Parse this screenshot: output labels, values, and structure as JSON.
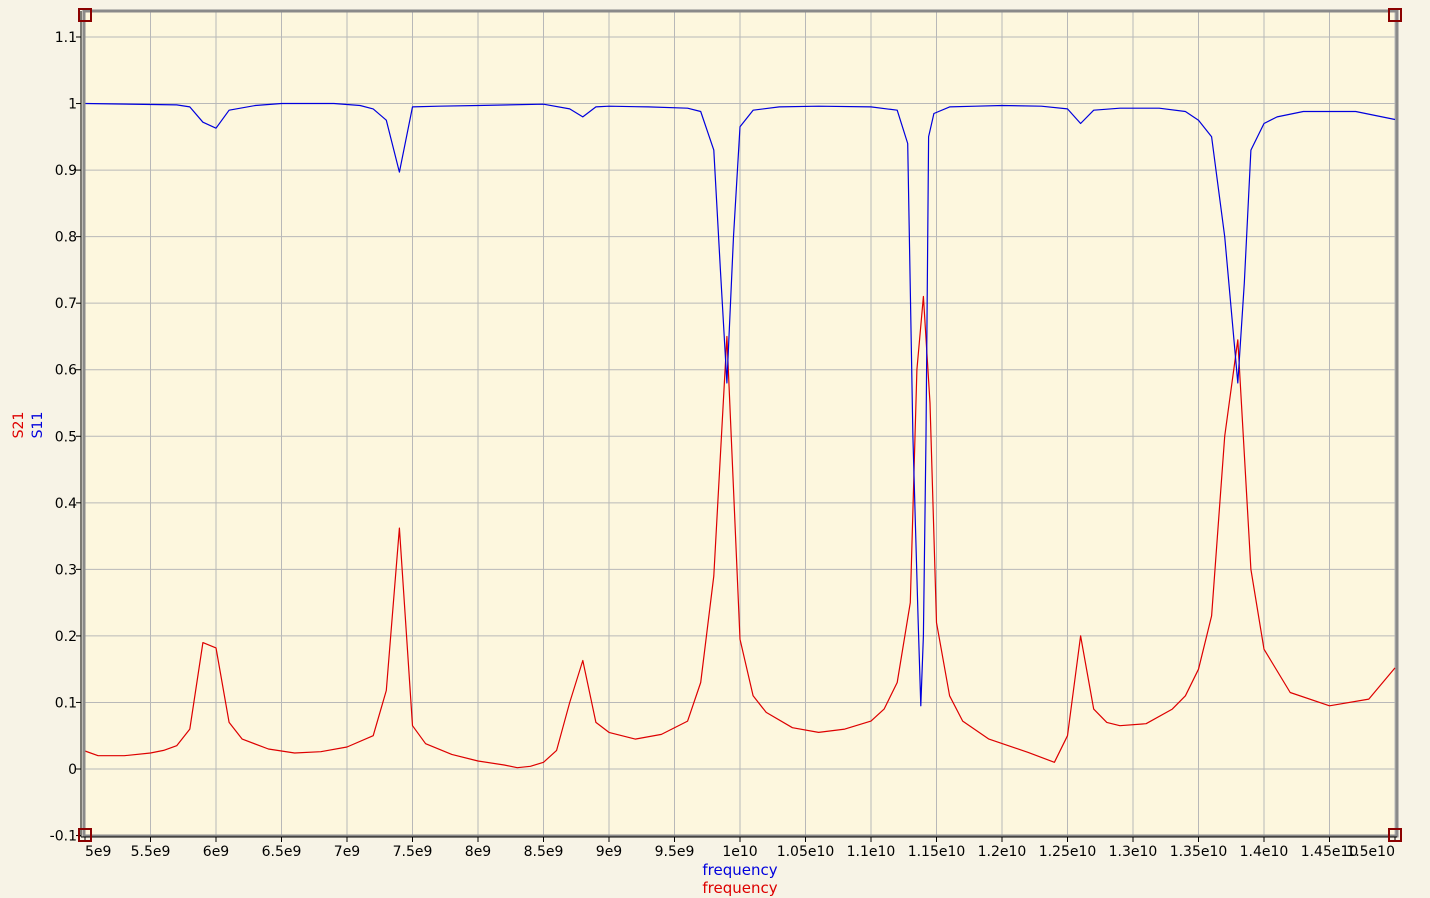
{
  "chart_data": {
    "type": "line",
    "xlabel": [
      "frequency",
      "frequency"
    ],
    "ylabel": [
      "S21",
      "S11"
    ],
    "xlim": [
      5000000000,
      15000000000
    ],
    "ylim": [
      -0.1,
      1.13
    ],
    "x_ticks": [
      {
        "value": 5000000000,
        "label": "5e9"
      },
      {
        "value": 5500000000,
        "label": "5.5e9"
      },
      {
        "value": 6000000000,
        "label": "6e9"
      },
      {
        "value": 6500000000,
        "label": "6.5e9"
      },
      {
        "value": 7000000000,
        "label": "7e9"
      },
      {
        "value": 7500000000,
        "label": "7.5e9"
      },
      {
        "value": 8000000000,
        "label": "8e9"
      },
      {
        "value": 8500000000,
        "label": "8.5e9"
      },
      {
        "value": 9000000000,
        "label": "9e9"
      },
      {
        "value": 9500000000,
        "label": "9.5e9"
      },
      {
        "value": 10000000000,
        "label": "1e10"
      },
      {
        "value": 10500000000,
        "label": "1.05e10"
      },
      {
        "value": 11000000000,
        "label": "1.1e10"
      },
      {
        "value": 11500000000,
        "label": "1.15e10"
      },
      {
        "value": 12000000000,
        "label": "1.2e10"
      },
      {
        "value": 12500000000,
        "label": "1.25e10"
      },
      {
        "value": 13000000000,
        "label": "1.3e10"
      },
      {
        "value": 13500000000,
        "label": "1.35e10"
      },
      {
        "value": 14000000000,
        "label": "1.4e10"
      },
      {
        "value": 14500000000,
        "label": "1.45e10"
      },
      {
        "value": 15000000000,
        "label": "1.5e10"
      }
    ],
    "y_ticks": [
      {
        "value": -0.1,
        "label": "-0.1"
      },
      {
        "value": 0,
        "label": "0"
      },
      {
        "value": 0.1,
        "label": "0.1"
      },
      {
        "value": 0.2,
        "label": "0.2"
      },
      {
        "value": 0.3,
        "label": "0.3"
      },
      {
        "value": 0.4,
        "label": "0.4"
      },
      {
        "value": 0.5,
        "label": "0.5"
      },
      {
        "value": 0.6,
        "label": "0.6"
      },
      {
        "value": 0.7,
        "label": "0.7"
      },
      {
        "value": 0.8,
        "label": "0.8"
      },
      {
        "value": 0.9,
        "label": "0.9"
      },
      {
        "value": 1.0,
        "label": "1"
      },
      {
        "value": 1.1,
        "label": "1.1"
      }
    ],
    "grid": true,
    "colors": {
      "background": "#f7f3e6",
      "plot_background": "#fdf7de",
      "grid": "#b8b8b8",
      "frame": "#8a8a8a",
      "marker": "#8b0000",
      "S11": "#0000dd",
      "S21": "#dd0000"
    },
    "series": [
      {
        "name": "S11",
        "color": "#0000dd",
        "x": [
          5000000000.0,
          5700000000.0,
          5800000000.0,
          5900000000.0,
          6000000000.0,
          6100000000.0,
          6300000000.0,
          6500000000.0,
          6900000000.0,
          7100000000.0,
          7200000000.0,
          7300000000.0,
          7400000000.0,
          7500000000.0,
          7700000000.0,
          8000000000.0,
          8500000000.0,
          8700000000.0,
          8800000000.0,
          8900000000.0,
          9000000000.0,
          9300000000.0,
          9600000000.0,
          9700000000.0,
          9800000000.0,
          9850000000.0,
          9900000000.0,
          9950000000.0,
          10000000000.0,
          10100000000.0,
          10300000000.0,
          10600000000.0,
          11000000000.0,
          11200000000.0,
          11280000000.0,
          11320000000.0,
          11360000000.0,
          11380000000.0,
          11400000000.0,
          11420000000.0,
          11440000000.0,
          11480000000.0,
          11600000000.0,
          11800000000.0,
          12000000000.0,
          12300000000.0,
          12500000000.0,
          12600000000.0,
          12700000000.0,
          12900000000.0,
          13200000000.0,
          13400000000.0,
          13500000000.0,
          13600000000.0,
          13700000000.0,
          13800000000.0,
          13850000000.0,
          13900000000.0,
          14000000000.0,
          14100000000.0,
          14300000000.0,
          14700000000.0,
          15000000000.0
        ],
        "values": [
          1.0,
          0.998,
          0.995,
          0.972,
          0.963,
          0.99,
          0.997,
          1.0,
          1.0,
          0.997,
          0.992,
          0.975,
          0.897,
          0.995,
          0.996,
          0.997,
          0.999,
          0.992,
          0.98,
          0.995,
          0.996,
          0.995,
          0.993,
          0.988,
          0.93,
          0.75,
          0.58,
          0.8,
          0.965,
          0.99,
          0.995,
          0.996,
          0.995,
          0.99,
          0.94,
          0.5,
          0.22,
          0.095,
          0.2,
          0.5,
          0.95,
          0.985,
          0.995,
          0.996,
          0.997,
          0.996,
          0.992,
          0.97,
          0.99,
          0.993,
          0.993,
          0.988,
          0.975,
          0.95,
          0.8,
          0.58,
          0.73,
          0.93,
          0.97,
          0.98,
          0.988,
          0.988,
          0.976
        ]
      },
      {
        "name": "S21",
        "color": "#dd0000",
        "x": [
          5000000000.0,
          5100000000.0,
          5300000000.0,
          5500000000.0,
          5600000000.0,
          5700000000.0,
          5800000000.0,
          5900000000.0,
          6000000000.0,
          6100000000.0,
          6200000000.0,
          6400000000.0,
          6600000000.0,
          6800000000.0,
          7000000000.0,
          7200000000.0,
          7300000000.0,
          7400000000.0,
          7500000000.0,
          7600000000.0,
          7800000000.0,
          8000000000.0,
          8200000000.0,
          8300000000.0,
          8400000000.0,
          8500000000.0,
          8600000000.0,
          8700000000.0,
          8800000000.0,
          8900000000.0,
          9000000000.0,
          9200000000.0,
          9400000000.0,
          9600000000.0,
          9700000000.0,
          9800000000.0,
          9900000000.0,
          10000000000.0,
          10100000000.0,
          10200000000.0,
          10400000000.0,
          10600000000.0,
          10800000000.0,
          11000000000.0,
          11100000000.0,
          11200000000.0,
          11300000000.0,
          11350000000.0,
          11400000000.0,
          11450000000.0,
          11500000000.0,
          11600000000.0,
          11700000000.0,
          11900000000.0,
          12200000000.0,
          12400000000.0,
          12500000000.0,
          12600000000.0,
          12700000000.0,
          12800000000.0,
          12900000000.0,
          13100000000.0,
          13300000000.0,
          13400000000.0,
          13500000000.0,
          13600000000.0,
          13700000000.0,
          13800000000.0,
          13900000000.0,
          14000000000.0,
          14200000000.0,
          14500000000.0,
          14800000000.0,
          15000000000.0
        ],
        "values": [
          0.027,
          0.02,
          0.02,
          0.024,
          0.028,
          0.035,
          0.06,
          0.19,
          0.182,
          0.07,
          0.045,
          0.03,
          0.024,
          0.026,
          0.033,
          0.05,
          0.118,
          0.362,
          0.065,
          0.038,
          0.022,
          0.012,
          0.006,
          0.002,
          0.004,
          0.01,
          0.028,
          0.1,
          0.163,
          0.07,
          0.055,
          0.045,
          0.052,
          0.072,
          0.13,
          0.29,
          0.65,
          0.195,
          0.11,
          0.085,
          0.062,
          0.055,
          0.06,
          0.072,
          0.09,
          0.13,
          0.25,
          0.6,
          0.71,
          0.55,
          0.22,
          0.11,
          0.072,
          0.045,
          0.025,
          0.01,
          0.05,
          0.2,
          0.09,
          0.07,
          0.065,
          0.068,
          0.09,
          0.11,
          0.15,
          0.23,
          0.5,
          0.645,
          0.3,
          0.18,
          0.115,
          0.095,
          0.105,
          0.152
        ]
      }
    ]
  }
}
